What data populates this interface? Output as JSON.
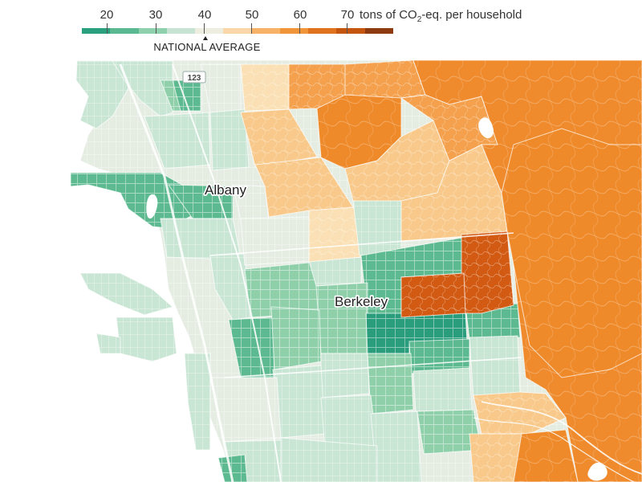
{
  "legend": {
    "ticks": [
      "20",
      "30",
      "40",
      "50",
      "60"
    ],
    "last_tick": "70",
    "unit_prefix": "tons of CO",
    "unit_subscript": "2",
    "unit_suffix": "-eq. per household",
    "national_average_label": "NATIONAL AVERAGE",
    "national_average_value": 40.5,
    "scale_min": 15,
    "scale_max": 80,
    "colors": [
      "#2aa07e",
      "#5bb991",
      "#8fd0ad",
      "#c6e3d3",
      "#eeeee0",
      "#f9d7a9",
      "#f7b267",
      "#f0953a",
      "#e0731e",
      "#c4560f",
      "#8e3b11"
    ]
  },
  "map": {
    "labels": {
      "albany": "Albany",
      "berkeley": "Berkeley"
    },
    "highway_shield": "123",
    "colors": {
      "water": "#ffffff",
      "very_low": "#2a9d7c",
      "low": "#5db98f",
      "mid_low": "#8fd0ab",
      "light": "#c9e5d4",
      "neutral": "#e5ede3",
      "tan": "#fae0b4",
      "light_orange": "#f8c98a",
      "orange": "#f4a04c",
      "dark_orange": "#ef8a2a",
      "hills": "#ef8b2d",
      "rust": "#d25a12"
    }
  }
}
